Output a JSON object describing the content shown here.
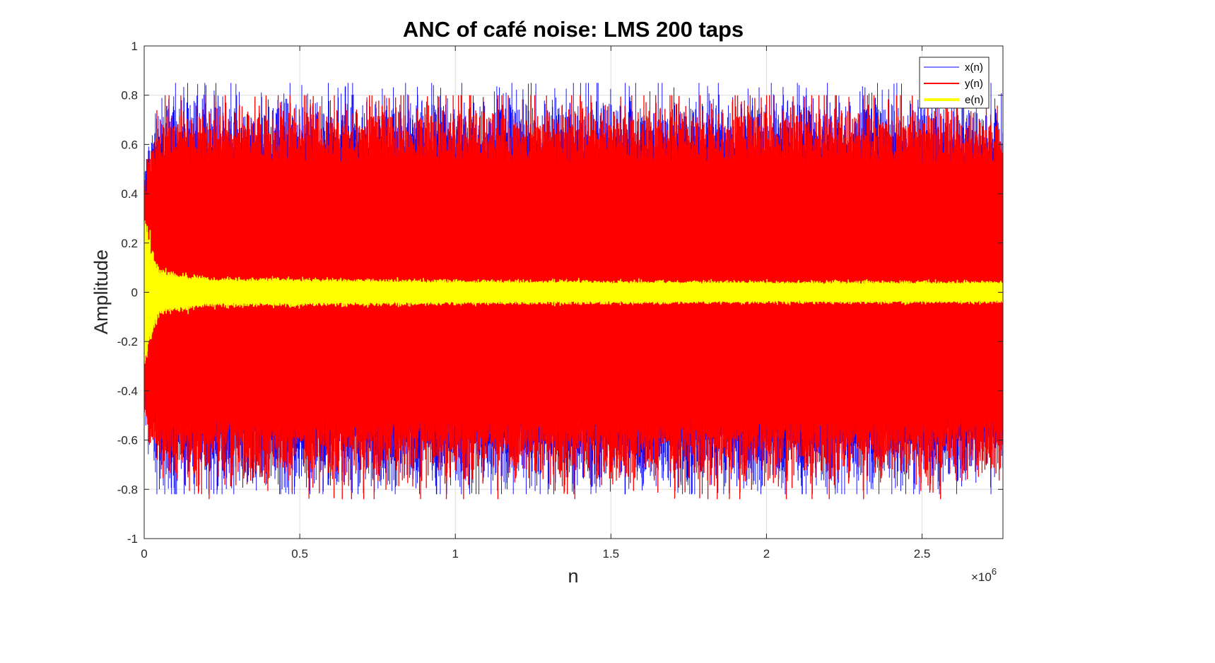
{
  "chart_data": {
    "type": "line",
    "title": "ANC of café noise: LMS 200 taps",
    "xlabel": "n",
    "ylabel": "Amplitude",
    "x_exponent_label": "×10",
    "x_exponent": "6",
    "xlim": [
      0,
      2.76
    ],
    "ylim": [
      -1,
      1
    ],
    "xticks": [
      0,
      0.5,
      1,
      1.5,
      2,
      2.5
    ],
    "xtick_labels": [
      "0",
      "0.5",
      "1",
      "1.5",
      "2",
      "2.5"
    ],
    "yticks": [
      -1,
      -0.8,
      -0.6,
      -0.4,
      -0.2,
      0,
      0.2,
      0.4,
      0.6,
      0.8,
      1
    ],
    "ytick_labels": [
      "-1",
      "-0.8",
      "-0.6",
      "-0.4",
      "-0.2",
      "0",
      "0.2",
      "0.4",
      "0.6",
      "0.8",
      "1"
    ],
    "grid": true,
    "legend_position": "top-right",
    "series": [
      {
        "name": "x(n)",
        "color": "#0000ff",
        "approx_min": -0.82,
        "approx_max": 0.85,
        "envelope": [
          [
            0,
            0.55
          ],
          [
            0.05,
            0.75
          ],
          [
            0.5,
            0.75
          ],
          [
            1.0,
            0.75
          ],
          [
            1.5,
            0.75
          ],
          [
            2.0,
            0.75
          ],
          [
            2.5,
            0.75
          ],
          [
            2.76,
            0.7
          ]
        ]
      },
      {
        "name": "y(n)",
        "color": "#ff0000",
        "approx_min": -0.84,
        "approx_max": 0.8,
        "envelope": [
          [
            0,
            0.5
          ],
          [
            0.05,
            0.72
          ],
          [
            0.5,
            0.72
          ],
          [
            1.0,
            0.72
          ],
          [
            1.5,
            0.72
          ],
          [
            2.0,
            0.72
          ],
          [
            2.5,
            0.72
          ],
          [
            2.76,
            0.68
          ]
        ]
      },
      {
        "name": "e(n)",
        "color": "#ffff00",
        "approx_min": -0.29,
        "approx_max": 0.36,
        "envelope": [
          [
            0,
            0.36
          ],
          [
            0.02,
            0.2
          ],
          [
            0.05,
            0.09
          ],
          [
            0.2,
            0.06
          ],
          [
            1.0,
            0.05
          ],
          [
            2.0,
            0.045
          ],
          [
            2.76,
            0.045
          ]
        ]
      }
    ]
  }
}
